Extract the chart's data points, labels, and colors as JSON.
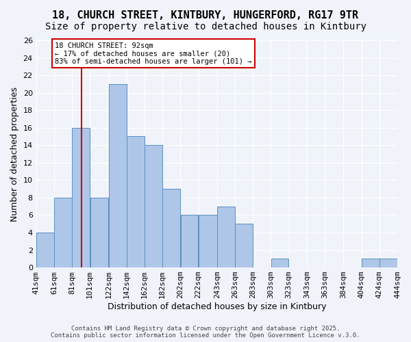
{
  "title1": "18, CHURCH STREET, KINTBURY, HUNGERFORD, RG17 9TR",
  "title2": "Size of property relative to detached houses in Kintbury",
  "xlabel": "Distribution of detached houses by size in Kintbury",
  "ylabel": "Number of detached properties",
  "bar_color": "#aec6e8",
  "bar_edge_color": "#5a8fc0",
  "bins": [
    41,
    61,
    81,
    101,
    122,
    142,
    162,
    182,
    202,
    222,
    243,
    263,
    283,
    303,
    323,
    343,
    363,
    384,
    404,
    424,
    444
  ],
  "counts": [
    4,
    8,
    16,
    8,
    21,
    15,
    14,
    9,
    6,
    6,
    7,
    5,
    0,
    1,
    0,
    0,
    0,
    0,
    1,
    1
  ],
  "tick_labels": [
    "41sqm",
    "61sqm",
    "81sqm",
    "101sqm",
    "122sqm",
    "142sqm",
    "162sqm",
    "182sqm",
    "202sqm",
    "222sqm",
    "243sqm",
    "263sqm",
    "283sqm",
    "303sqm",
    "323sqm",
    "343sqm",
    "363sqm",
    "384sqm",
    "404sqm",
    "424sqm",
    "444sqm"
  ],
  "vline_x": 92,
  "vline_color": "#cc0000",
  "annotation_text": "18 CHURCH STREET: 92sqm\n← 17% of detached houses are smaller (20)\n83% of semi-detached houses are larger (101) →",
  "annotation_box_color": "#ffffff",
  "annotation_box_edge": "#cc0000",
  "ylim": [
    0,
    26
  ],
  "yticks": [
    0,
    2,
    4,
    6,
    8,
    10,
    12,
    14,
    16,
    18,
    20,
    22,
    24,
    26
  ],
  "background_color": "#f0f4fa",
  "footer_text": "Contains HM Land Registry data © Crown copyright and database right 2025.\nContains public sector information licensed under the Open Government Licence v.3.0.",
  "grid_color": "#ffffff",
  "title_fontsize": 11,
  "subtitle_fontsize": 10,
  "axis_label_fontsize": 9,
  "tick_fontsize": 8
}
